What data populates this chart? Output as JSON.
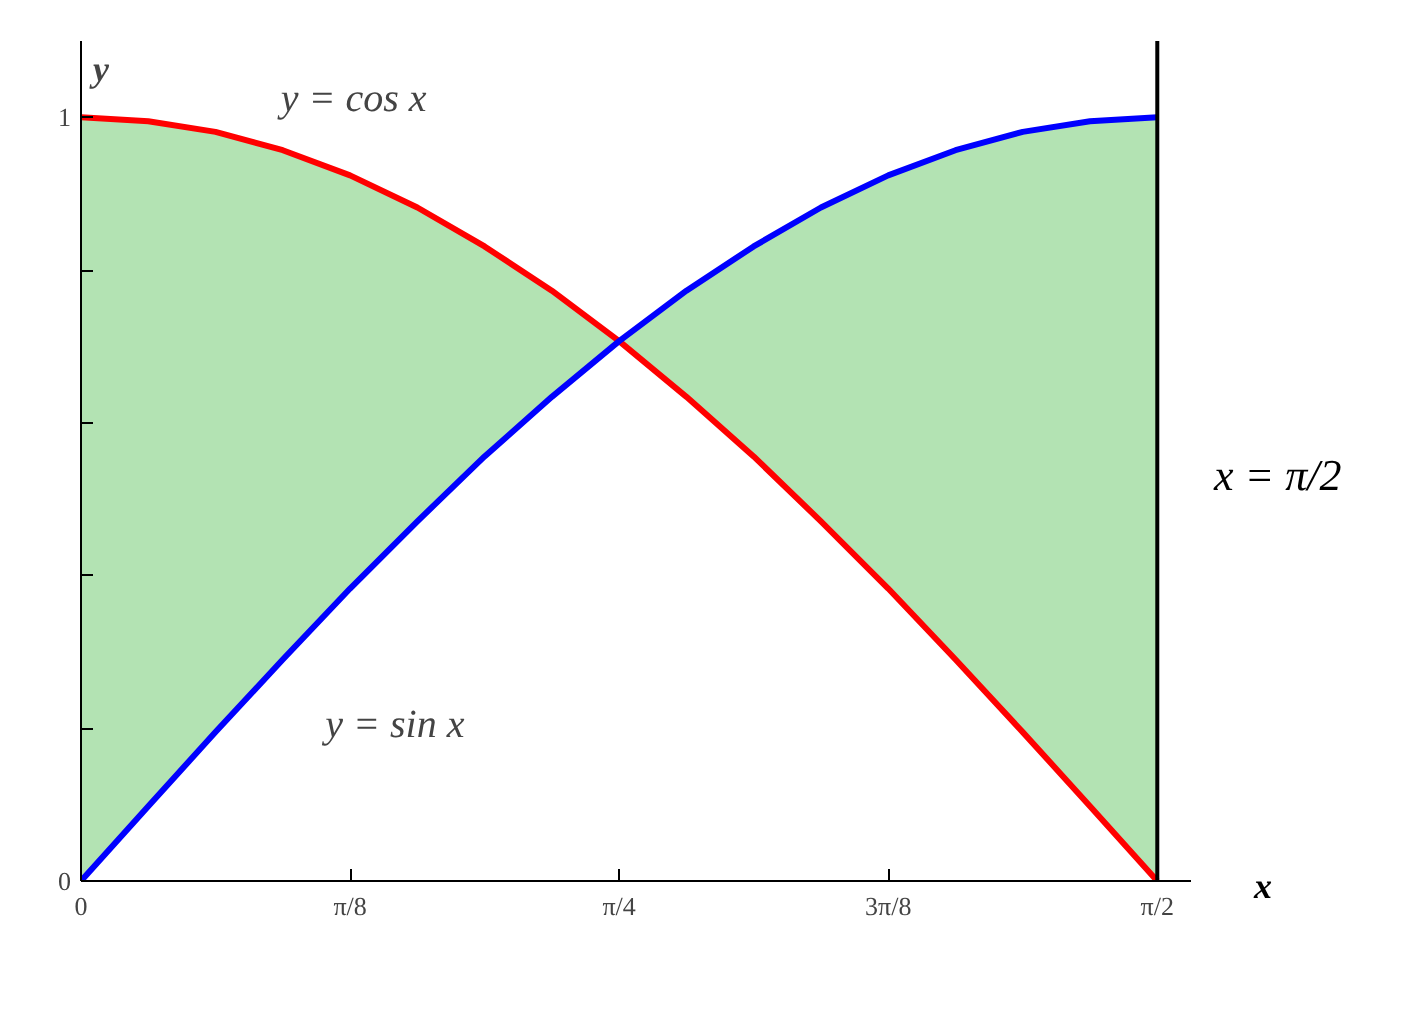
{
  "chart_data": {
    "type": "line",
    "xlabel": "x",
    "ylabel": "y",
    "xlim": [
      0,
      1.62
    ],
    "ylim": [
      0,
      1.1
    ],
    "xticks": [
      0,
      {
        "value": 0.3927,
        "label": "π/8"
      },
      {
        "value": 0.7854,
        "label": "π/4"
      },
      {
        "value": 1.1781,
        "label": "3π/8"
      },
      {
        "value": 1.5708,
        "label": "π/2"
      }
    ],
    "yticks": [
      0,
      {
        "value": 0.2,
        "label": null
      },
      {
        "value": 0.4,
        "label": null
      },
      {
        "value": 0.6,
        "label": null
      },
      {
        "value": 0.8,
        "label": null
      },
      1
    ],
    "x": [
      0,
      0.0982,
      0.1963,
      0.2945,
      0.3927,
      0.4909,
      0.589,
      0.6872,
      0.7854,
      0.8836,
      0.9817,
      1.0799,
      1.1781,
      1.2763,
      1.3744,
      1.4726,
      1.5708
    ],
    "series": [
      {
        "color": "#ff0000",
        "values": [
          1,
          0.995,
          0.981,
          0.957,
          0.924,
          0.882,
          0.831,
          0.773,
          0.707,
          0.634,
          0.556,
          0.471,
          0.383,
          0.29,
          0.195,
          0.098,
          0
        ],
        "lower": [
          0,
          0.098,
          0.195,
          0.29,
          0.383,
          0.471,
          0.556,
          0.634,
          0.707,
          0.634,
          0.556,
          0.471,
          0.383,
          0.29,
          0.195,
          0.098,
          0
        ],
        "upper": [
          1,
          0.995,
          0.981,
          0.957,
          0.924,
          0.882,
          0.831,
          0.773,
          0.707,
          0.773,
          0.831,
          0.882,
          0.924,
          0.957,
          0.981,
          0.995,
          1
        ]
      },
      {
        "color": "#0000ff",
        "values": [
          0,
          0.098,
          0.195,
          0.29,
          0.383,
          0.471,
          0.556,
          0.634,
          0.707,
          0.773,
          0.831,
          0.882,
          0.924,
          0.957,
          0.981,
          0.995,
          1
        ]
      }
    ],
    "ref_lines": [
      {
        "axis": "x",
        "value": 1.5708,
        "label": "x = π/2",
        "color": "#000000"
      }
    ],
    "annotations": [
      "y = cos x",
      "y = sin x"
    ],
    "grid": false,
    "marker": "none",
    "line_style": "solid"
  }
}
